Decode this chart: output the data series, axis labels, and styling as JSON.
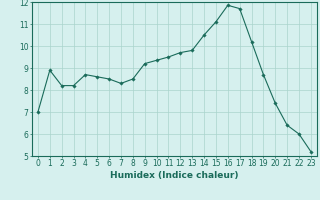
{
  "x": [
    0,
    1,
    2,
    3,
    4,
    5,
    6,
    7,
    8,
    9,
    10,
    11,
    12,
    13,
    14,
    15,
    16,
    17,
    18,
    19,
    20,
    21,
    22,
    23
  ],
  "y": [
    7.0,
    8.9,
    8.2,
    8.2,
    8.7,
    8.6,
    8.5,
    8.3,
    8.5,
    9.2,
    9.35,
    9.5,
    9.7,
    9.8,
    10.5,
    11.1,
    11.85,
    11.7,
    10.2,
    8.7,
    7.4,
    6.4,
    6.0,
    5.2
  ],
  "xlabel": "Humidex (Indice chaleur)",
  "ylim": [
    5,
    12
  ],
  "xlim": [
    -0.5,
    23.5
  ],
  "yticks": [
    5,
    6,
    7,
    8,
    9,
    10,
    11,
    12
  ],
  "xticks": [
    0,
    1,
    2,
    3,
    4,
    5,
    6,
    7,
    8,
    9,
    10,
    11,
    12,
    13,
    14,
    15,
    16,
    17,
    18,
    19,
    20,
    21,
    22,
    23
  ],
  "line_color": "#1a6b5a",
  "marker": "D",
  "marker_size": 1.8,
  "bg_color": "#d6f0ee",
  "grid_color": "#aad4cc",
  "tick_color": "#1a6b5a",
  "label_color": "#1a6b5a",
  "xlabel_fontsize": 6.5,
  "tick_fontsize": 5.5
}
